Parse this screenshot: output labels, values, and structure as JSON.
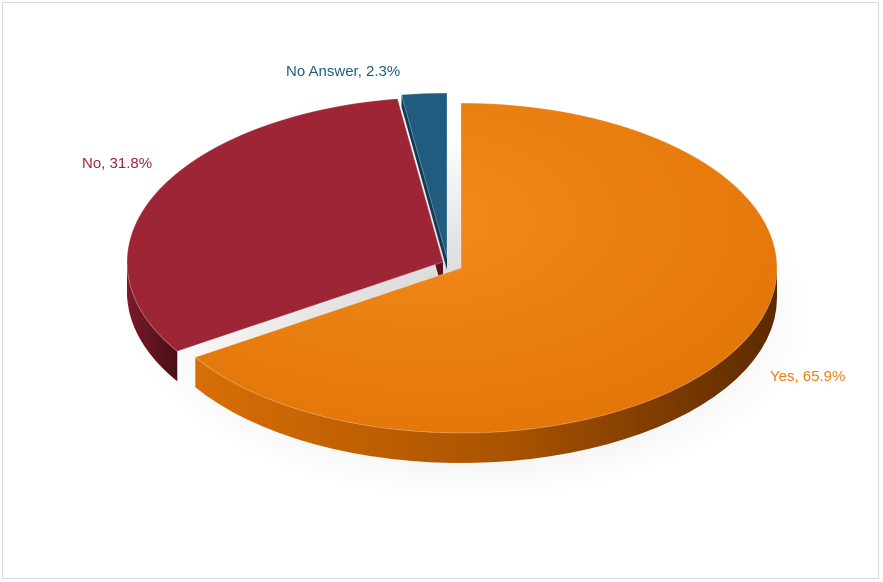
{
  "chart_data": {
    "type": "pie",
    "style": "3d-exploded",
    "title": "",
    "slices": [
      {
        "name": "Yes",
        "value": 65.9,
        "label": "Yes, 65.9%",
        "color": "#ED7D0C",
        "side_color": "#9E4A00"
      },
      {
        "name": "No",
        "value": 31.8,
        "label": "No, 31.8%",
        "color": "#9E2536",
        "side_color": "#5E111C"
      },
      {
        "name": "No Answer",
        "value": 2.3,
        "label": "No Answer, 2.3%",
        "color": "#1F5C80",
        "side_color": "#123A52"
      }
    ],
    "legend": "none"
  }
}
